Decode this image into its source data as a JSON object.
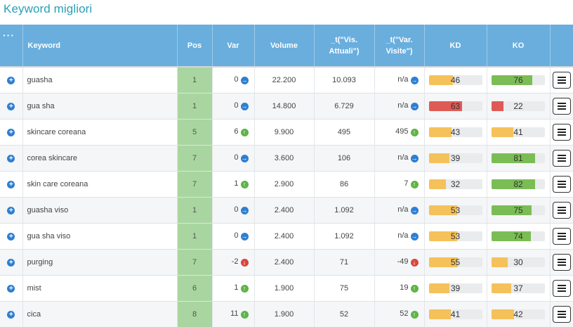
{
  "title": "Keyword migliori",
  "columns": {
    "menu": "···",
    "keyword": "Keyword",
    "pos": "Pos",
    "var": "Var",
    "volume": "Volume",
    "vis_attuali": "_t(\"Vis. Attuali\")",
    "var_visite": "_t(\"Var. Visite\")",
    "kd": "KD",
    "ko": "KO"
  },
  "colors": {
    "header_bg": "#69aedd",
    "title": "#2a9fb5",
    "pos_bg": "#a9d6a0",
    "bar_yellow": "#f5c15a",
    "bar_green": "#7bbd55",
    "bar_red": "#df5a55",
    "indicator_neutral": "#2f7fd0",
    "indicator_up": "#5fb346",
    "indicator_down": "#d9453f"
  },
  "rows": [
    {
      "keyword": "guasha",
      "pos": "1",
      "var": "0",
      "var_dir": "neutral",
      "volume": "22.200",
      "vis": "10.093",
      "vv": "n/a",
      "vv_dir": "neutral",
      "kd": "46",
      "kd_fraction": 0.46,
      "kd_color": "yellow",
      "ko": "76",
      "ko_fraction": 0.76,
      "ko_color": "green"
    },
    {
      "keyword": "gua sha",
      "pos": "1",
      "var": "0",
      "var_dir": "neutral",
      "volume": "14.800",
      "vis": "6.729",
      "vv": "n/a",
      "vv_dir": "neutral",
      "kd": "63",
      "kd_fraction": 0.63,
      "kd_color": "red",
      "ko": "22",
      "ko_fraction": 0.22,
      "ko_color": "red"
    },
    {
      "keyword": "skincare coreana",
      "pos": "5",
      "var": "6",
      "var_dir": "up",
      "volume": "9.900",
      "vis": "495",
      "vv": "495",
      "vv_dir": "up",
      "kd": "43",
      "kd_fraction": 0.43,
      "kd_color": "yellow",
      "ko": "41",
      "ko_fraction": 0.41,
      "ko_color": "yellow"
    },
    {
      "keyword": "corea skincare",
      "pos": "7",
      "var": "0",
      "var_dir": "neutral",
      "volume": "3.600",
      "vis": "106",
      "vv": "n/a",
      "vv_dir": "neutral",
      "kd": "39",
      "kd_fraction": 0.39,
      "kd_color": "yellow",
      "ko": "81",
      "ko_fraction": 0.81,
      "ko_color": "green"
    },
    {
      "keyword": "skin care coreana",
      "pos": "7",
      "var": "1",
      "var_dir": "up",
      "volume": "2.900",
      "vis": "86",
      "vv": "7",
      "vv_dir": "up",
      "kd": "32",
      "kd_fraction": 0.32,
      "kd_color": "yellow",
      "ko": "82",
      "ko_fraction": 0.82,
      "ko_color": "green"
    },
    {
      "keyword": "guasha viso",
      "pos": "1",
      "var": "0",
      "var_dir": "neutral",
      "volume": "2.400",
      "vis": "1.092",
      "vv": "n/a",
      "vv_dir": "neutral",
      "kd": "53",
      "kd_fraction": 0.53,
      "kd_color": "yellow",
      "ko": "75",
      "ko_fraction": 0.75,
      "ko_color": "green"
    },
    {
      "keyword": "gua sha viso",
      "pos": "1",
      "var": "0",
      "var_dir": "neutral",
      "volume": "2.400",
      "vis": "1.092",
      "vv": "n/a",
      "vv_dir": "neutral",
      "kd": "53",
      "kd_fraction": 0.53,
      "kd_color": "yellow",
      "ko": "74",
      "ko_fraction": 0.74,
      "ko_color": "green"
    },
    {
      "keyword": "purging",
      "pos": "7",
      "var": "-2",
      "var_dir": "down",
      "volume": "2.400",
      "vis": "71",
      "vv": "-49",
      "vv_dir": "down",
      "kd": "55",
      "kd_fraction": 0.55,
      "kd_color": "yellow",
      "ko": "30",
      "ko_fraction": 0.3,
      "ko_color": "yellow"
    },
    {
      "keyword": "mist",
      "pos": "6",
      "var": "1",
      "var_dir": "up",
      "volume": "1.900",
      "vis": "75",
      "vv": "19",
      "vv_dir": "up",
      "kd": "39",
      "kd_fraction": 0.39,
      "kd_color": "yellow",
      "ko": "37",
      "ko_fraction": 0.37,
      "ko_color": "yellow"
    },
    {
      "keyword": "cica",
      "pos": "8",
      "var": "11",
      "var_dir": "up",
      "volume": "1.900",
      "vis": "52",
      "vv": "52",
      "vv_dir": "up",
      "kd": "41",
      "kd_fraction": 0.41,
      "kd_color": "yellow",
      "ko": "42",
      "ko_fraction": 0.42,
      "ko_color": "yellow"
    }
  ]
}
